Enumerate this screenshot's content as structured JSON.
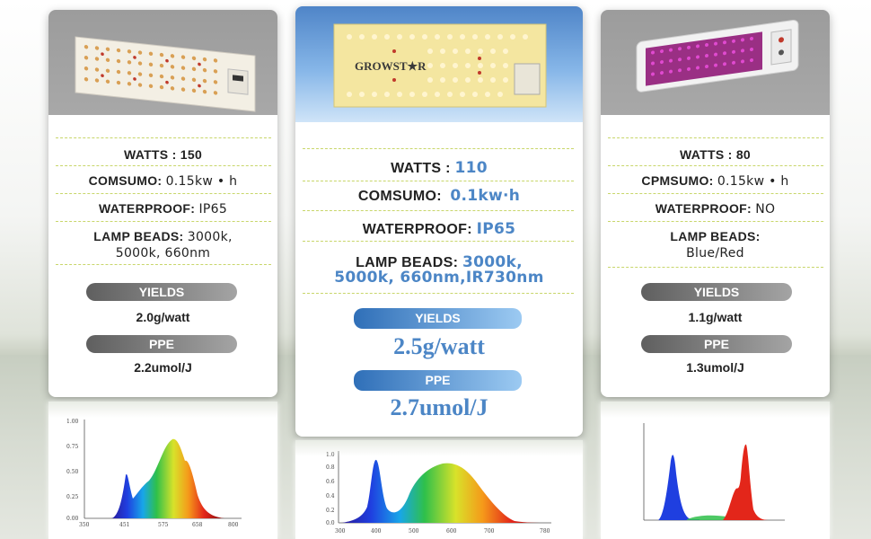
{
  "colors": {
    "accent_blue": "#4c86c6",
    "pill_gray": "#8a8a8a",
    "pill_blue": "#3f7fc4",
    "dash_line": "#c8d66a"
  },
  "products": [
    {
      "id": "left",
      "image_icon": "led-grow-light-panel-icon",
      "watts_label": "WATTS :",
      "watts_value": "150",
      "consumo_label": "COMSUMO:",
      "consumo_value": "0.15kw • h",
      "waterproof_label": "WATERPROOF:",
      "waterproof_value": "IP65",
      "beads_label": "LAMP BEADS:",
      "beads_value_1": "3000k,",
      "beads_value_2": "5000k,  660nm",
      "yields_label": "YIELDS",
      "yields_value": "2.0g/watt",
      "ppe_label": "PPE",
      "ppe_value": "2.2umol/J",
      "spectrum_ticks": [
        "350",
        "451",
        "575",
        "658",
        "800"
      ],
      "spectrum_y_ticks": [
        "1.00",
        "0.75",
        "0.50",
        "0.25",
        "0.00"
      ]
    },
    {
      "id": "middle",
      "image_icon": "growstar-led-panel-icon",
      "brand_text": "GROWST★R",
      "watts_label": "WATTS :",
      "watts_value": "110",
      "consumo_label": "COMSUMO:",
      "consumo_value": "0.1kw·h",
      "waterproof_label": "WATERPROOF:",
      "waterproof_value": "IP65",
      "beads_label": "LAMP BEADS:",
      "beads_value_1": "3000k,",
      "beads_value_2": "5000k,  660nm,IR730nm",
      "yields_label": "YIELDS",
      "yields_value": "2.5g/watt",
      "ppe_label": "PPE",
      "ppe_value": "2.7umol/J",
      "spectrum_ticks": [
        "300",
        "400",
        "500",
        "600",
        "700",
        "780"
      ],
      "spectrum_y_ticks": [
        "1.0",
        "0.8",
        "0.6",
        "0.4",
        "0.2",
        "0.0"
      ]
    },
    {
      "id": "right",
      "image_icon": "blue-red-led-panel-icon",
      "watts_label": "WATTS :",
      "watts_value": "80",
      "consumo_label": "CPMSUMO:",
      "consumo_value": "0.15kw • h",
      "waterproof_label": "WATERPROOF:",
      "waterproof_value": "NO",
      "beads_label": "LAMP BEADS:",
      "beads_value_1": "Blue/Red",
      "yields_label": "YIELDS",
      "yields_value": "1.1g/watt",
      "ppe_label": "PPE",
      "ppe_value": "1.3umol/J"
    }
  ]
}
